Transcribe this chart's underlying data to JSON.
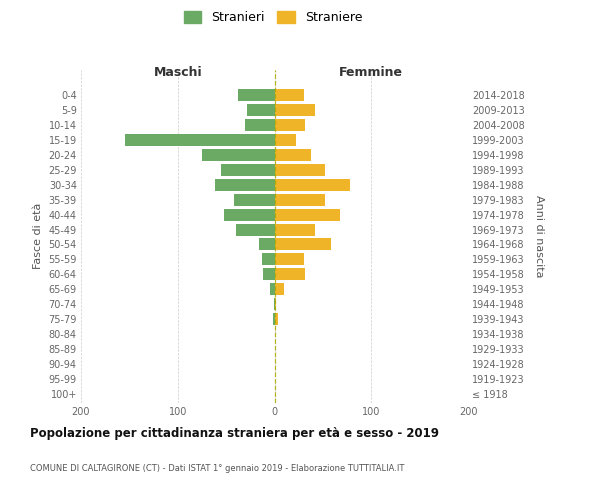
{
  "age_groups": [
    "100+",
    "95-99",
    "90-94",
    "85-89",
    "80-84",
    "75-79",
    "70-74",
    "65-69",
    "60-64",
    "55-59",
    "50-54",
    "45-49",
    "40-44",
    "35-39",
    "30-34",
    "25-29",
    "20-24",
    "15-19",
    "10-14",
    "5-9",
    "0-4"
  ],
  "birth_years": [
    "≤ 1918",
    "1919-1923",
    "1924-1928",
    "1929-1933",
    "1934-1938",
    "1939-1943",
    "1944-1948",
    "1949-1953",
    "1954-1958",
    "1959-1963",
    "1964-1968",
    "1969-1973",
    "1974-1978",
    "1979-1983",
    "1984-1988",
    "1989-1993",
    "1994-1998",
    "1999-2003",
    "2004-2008",
    "2009-2013",
    "2014-2018"
  ],
  "maschi": [
    0,
    0,
    0,
    0,
    0,
    2,
    1,
    5,
    12,
    13,
    16,
    40,
    52,
    42,
    62,
    55,
    75,
    155,
    30,
    28,
    38
  ],
  "femmine": [
    0,
    0,
    0,
    0,
    0,
    4,
    2,
    10,
    32,
    30,
    58,
    42,
    68,
    52,
    78,
    52,
    38,
    22,
    32,
    42,
    30
  ],
  "male_color": "#6aaa64",
  "female_color": "#f0b429",
  "maschi_label": "Stranieri",
  "femmine_label": "Straniere",
  "title_main": "Popolazione per cittadinanza straniera per età e sesso - 2019",
  "title_sub": "COMUNE DI CALTAGIRONE (CT) - Dati ISTAT 1° gennaio 2019 - Elaborazione TUTTITALIA.IT",
  "ylabel_left": "Fasce di età",
  "ylabel_right": "Anni di nascita",
  "col_header_left": "Maschi",
  "col_header_right": "Femmine",
  "xlim": 200,
  "bg_color": "#ffffff",
  "grid_color": "#cccccc",
  "bar_height": 0.8
}
